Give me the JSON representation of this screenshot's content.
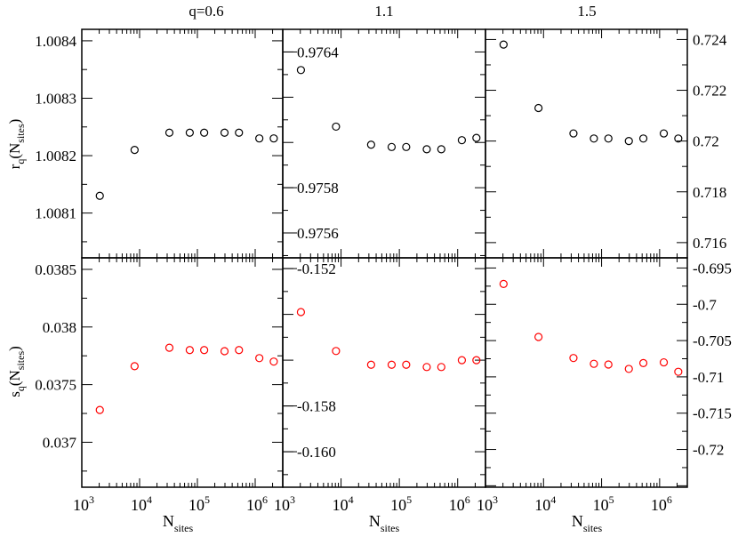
{
  "figure": {
    "column_titles": [
      "q=0.6",
      "1.1",
      "1.5"
    ],
    "top_ylabel": {
      "main": "r",
      "sub1": "q",
      "mid": "(N",
      "sub2": "sites",
      "end": ")"
    },
    "bottom_ylabel": {
      "main": "s",
      "sub1": "q",
      "mid": "(N",
      "sub2": "sites",
      "end": ")"
    },
    "xlabel": {
      "main": "N",
      "sub": "sites"
    },
    "colors": {
      "top_markers": "#000000",
      "bottom_markers": "#ff0000",
      "axes": "#000000"
    }
  },
  "chart_data": [
    {
      "type": "scatter",
      "panel": "top-left",
      "title": "q=0.6",
      "ylabel": "r_q(N_sites)",
      "xscale": "log",
      "xlim": [
        1000,
        3000000
      ],
      "ylim": [
        1.008022,
        1.00842
      ],
      "yticks": [
        1.0081,
        1.0082,
        1.0083,
        1.0084
      ],
      "ytick_labels": [
        "1.0081",
        "1.0082",
        "1.0083",
        "1.0084"
      ],
      "ytick_side": "left",
      "x": [
        2048,
        8192,
        32768,
        73728,
        131072,
        294912,
        524288,
        1179648,
        2097152
      ],
      "y": [
        1.00813,
        1.00821,
        1.00824,
        1.00824,
        1.00824,
        1.00824,
        1.00824,
        1.00823,
        1.00823
      ]
    },
    {
      "type": "scatter",
      "panel": "top-middle",
      "title": "1.1",
      "ylabel": "r_q(N_sites)",
      "xscale": "log",
      "xlim": [
        1000,
        3000000
      ],
      "ylim": [
        0.97549,
        0.9765
      ],
      "yticks": [
        0.9756,
        0.9758,
        0.976,
        0.9762,
        0.9764
      ],
      "ytick_labels": [
        "0.9756",
        "0.9758",
        "",
        "",
        "0.9764"
      ],
      "ytick_side": "inside",
      "x": [
        2048,
        8192,
        32768,
        73728,
        131072,
        294912,
        524288,
        1179648,
        2097152
      ],
      "y": [
        0.97632,
        0.97607,
        0.97599,
        0.97598,
        0.97598,
        0.97597,
        0.97597,
        0.97601,
        0.97602
      ]
    },
    {
      "type": "scatter",
      "panel": "top-right",
      "title": "1.5",
      "ylabel": "r_q(N_sites)",
      "xscale": "log",
      "xlim": [
        1000,
        3000000
      ],
      "ylim": [
        0.7154,
        0.7244
      ],
      "yticks": [
        0.716,
        0.718,
        0.72,
        0.722,
        0.724
      ],
      "ytick_labels": [
        "0.716",
        "0.718",
        "0.72",
        "0.722",
        "0.724"
      ],
      "ytick_side": "right",
      "x": [
        2048,
        8192,
        32768,
        73728,
        131072,
        294912,
        524288,
        1179648,
        2097152
      ],
      "y": [
        0.7238,
        0.7213,
        0.7203,
        0.7201,
        0.7201,
        0.72,
        0.7201,
        0.7203,
        0.7201
      ]
    },
    {
      "type": "scatter",
      "panel": "bottom-left",
      "ylabel": "s_q(N_sites)",
      "xlabel": "N_sites",
      "xscale": "log",
      "xlim": [
        1000,
        3000000
      ],
      "ylim": [
        0.03661,
        0.0386
      ],
      "yticks": [
        0.037,
        0.0375,
        0.038,
        0.0385
      ],
      "ytick_labels": [
        "0.037",
        "0.0375",
        "0.038",
        "0.0385"
      ],
      "ytick_side": "left",
      "x": [
        2048,
        8192,
        32768,
        73728,
        131072,
        294912,
        524288,
        1179648,
        2097152
      ],
      "y": [
        0.03728,
        0.03766,
        0.03782,
        0.0378,
        0.0378,
        0.03779,
        0.0378,
        0.03773,
        0.0377
      ]
    },
    {
      "type": "scatter",
      "panel": "bottom-middle",
      "xlabel": "N_sites",
      "xscale": "log",
      "xlim": [
        1000,
        3000000
      ],
      "ylim": [
        -0.16155,
        -0.15153
      ],
      "yticks": [
        -0.16,
        -0.158,
        -0.156,
        -0.154,
        -0.152
      ],
      "ytick_labels": [
        "-0.160",
        "-0.158",
        "",
        "",
        "-0.152"
      ],
      "ytick_side": "inside",
      "x": [
        2048,
        8192,
        32768,
        73728,
        131072,
        294912,
        524288,
        1179648,
        2097152
      ],
      "y": [
        -0.1539,
        -0.1556,
        -0.1562,
        -0.1562,
        -0.1562,
        -0.1563,
        -0.1563,
        -0.156,
        -0.156
      ]
    },
    {
      "type": "scatter",
      "panel": "bottom-right",
      "xlabel": "N_sites",
      "xscale": "log",
      "xlim": [
        1000,
        3000000
      ],
      "ylim": [
        -0.7252,
        -0.6936
      ],
      "yticks": [
        -0.72,
        -0.715,
        -0.71,
        -0.705,
        -0.7,
        -0.695
      ],
      "ytick_labels": [
        "-0.72",
        "-0.715",
        "-0.71",
        "-0.705",
        "-0.7",
        "-0.695"
      ],
      "ytick_side": "right",
      "x": [
        2048,
        8192,
        32768,
        73728,
        131072,
        294912,
        524288,
        1179648,
        2097152
      ],
      "y": [
        -0.6972,
        -0.7045,
        -0.7074,
        -0.7082,
        -0.7083,
        -0.7089,
        -0.7081,
        -0.708,
        -0.7093
      ]
    }
  ],
  "x_tick_labels": [
    {
      "base": "10",
      "exp": "3"
    },
    {
      "base": "10",
      "exp": "4"
    },
    {
      "base": "10",
      "exp": "5"
    },
    {
      "base": "10",
      "exp": "6"
    }
  ]
}
